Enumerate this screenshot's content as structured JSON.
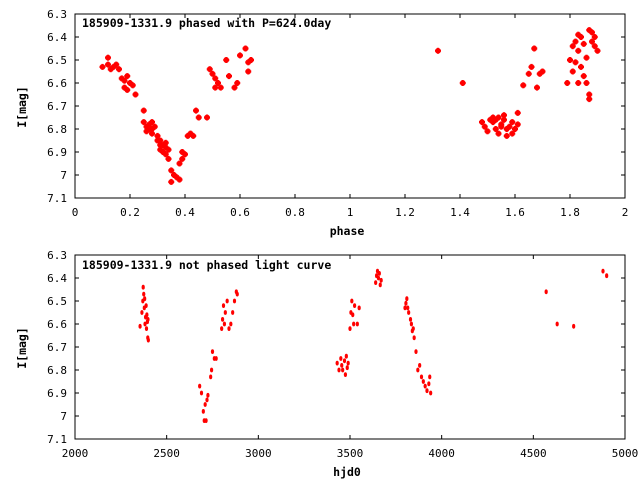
{
  "chart_data": [
    {
      "type": "scatter",
      "title": "185909-1331.9 phased with P=624.0day",
      "xlabel": "phase",
      "ylabel": "I[mag]",
      "xlim": [
        0,
        2
      ],
      "ylim": [
        6.3,
        7.1
      ],
      "y_inverted": true,
      "xticks": [
        "0",
        "0.2",
        "0.4",
        "0.6",
        "0.8",
        "1",
        "1.2",
        "1.4",
        "1.6",
        "1.8",
        "2"
      ],
      "yticks": [
        "6.3",
        "6.4",
        "6.5",
        "6.6",
        "6.7",
        "6.8",
        "6.9",
        "7",
        "7.1"
      ],
      "marker_color": "#ff0000",
      "points": [
        [
          0.1,
          6.53
        ],
        [
          0.12,
          6.52
        ],
        [
          0.12,
          6.49
        ],
        [
          0.13,
          6.54
        ],
        [
          0.14,
          6.53
        ],
        [
          0.15,
          6.52
        ],
        [
          0.16,
          6.54
        ],
        [
          0.17,
          6.58
        ],
        [
          0.18,
          6.59
        ],
        [
          0.18,
          6.62
        ],
        [
          0.19,
          6.57
        ],
        [
          0.19,
          6.63
        ],
        [
          0.2,
          6.6
        ],
        [
          0.21,
          6.61
        ],
        [
          0.22,
          6.65
        ],
        [
          0.25,
          6.72
        ],
        [
          0.25,
          6.77
        ],
        [
          0.26,
          6.79
        ],
        [
          0.26,
          6.81
        ],
        [
          0.27,
          6.78
        ],
        [
          0.27,
          6.8
        ],
        [
          0.28,
          6.77
        ],
        [
          0.28,
          6.82
        ],
        [
          0.28,
          6.8
        ],
        [
          0.29,
          6.79
        ],
        [
          0.3,
          6.83
        ],
        [
          0.3,
          6.85
        ],
        [
          0.31,
          6.87
        ],
        [
          0.31,
          6.89
        ],
        [
          0.31,
          6.85
        ],
        [
          0.32,
          6.87
        ],
        [
          0.32,
          6.9
        ],
        [
          0.33,
          6.86
        ],
        [
          0.33,
          6.91
        ],
        [
          0.33,
          6.88
        ],
        [
          0.34,
          6.89
        ],
        [
          0.34,
          6.93
        ],
        [
          0.35,
          6.98
        ],
        [
          0.35,
          7.03
        ],
        [
          0.36,
          7.0
        ],
        [
          0.37,
          7.01
        ],
        [
          0.38,
          7.02
        ],
        [
          0.38,
          6.95
        ],
        [
          0.39,
          6.93
        ],
        [
          0.39,
          6.9
        ],
        [
          0.4,
          6.91
        ],
        [
          0.41,
          6.83
        ],
        [
          0.42,
          6.82
        ],
        [
          0.43,
          6.83
        ],
        [
          0.44,
          6.72
        ],
        [
          0.45,
          6.75
        ],
        [
          0.48,
          6.75
        ],
        [
          0.49,
          6.54
        ],
        [
          0.5,
          6.56
        ],
        [
          0.51,
          6.58
        ],
        [
          0.51,
          6.62
        ],
        [
          0.52,
          6.6
        ],
        [
          0.53,
          6.62
        ],
        [
          0.55,
          6.5
        ],
        [
          0.56,
          6.57
        ],
        [
          0.58,
          6.62
        ],
        [
          0.59,
          6.6
        ],
        [
          0.6,
          6.48
        ],
        [
          0.62,
          6.45
        ],
        [
          0.63,
          6.51
        ],
        [
          0.63,
          6.55
        ],
        [
          0.64,
          6.5
        ],
        [
          1.32,
          6.46
        ],
        [
          1.41,
          6.6
        ],
        [
          1.48,
          6.77
        ],
        [
          1.49,
          6.79
        ],
        [
          1.5,
          6.81
        ],
        [
          1.51,
          6.76
        ],
        [
          1.52,
          6.75
        ],
        [
          1.52,
          6.77
        ],
        [
          1.53,
          6.76
        ],
        [
          1.53,
          6.8
        ],
        [
          1.54,
          6.75
        ],
        [
          1.54,
          6.82
        ],
        [
          1.55,
          6.78
        ],
        [
          1.55,
          6.79
        ],
        [
          1.56,
          6.74
        ],
        [
          1.56,
          6.76
        ],
        [
          1.57,
          6.8
        ],
        [
          1.57,
          6.83
        ],
        [
          1.58,
          6.79
        ],
        [
          1.59,
          6.77
        ],
        [
          1.59,
          6.82
        ],
        [
          1.6,
          6.8
        ],
        [
          1.61,
          6.73
        ],
        [
          1.61,
          6.78
        ],
        [
          1.63,
          6.61
        ],
        [
          1.65,
          6.56
        ],
        [
          1.66,
          6.53
        ],
        [
          1.67,
          6.45
        ],
        [
          1.68,
          6.62
        ],
        [
          1.69,
          6.56
        ],
        [
          1.7,
          6.55
        ],
        [
          1.79,
          6.6
        ],
        [
          1.8,
          6.5
        ],
        [
          1.81,
          6.44
        ],
        [
          1.81,
          6.55
        ],
        [
          1.82,
          6.42
        ],
        [
          1.82,
          6.51
        ],
        [
          1.83,
          6.39
        ],
        [
          1.83,
          6.46
        ],
        [
          1.83,
          6.6
        ],
        [
          1.84,
          6.4
        ],
        [
          1.84,
          6.53
        ],
        [
          1.85,
          6.43
        ],
        [
          1.85,
          6.57
        ],
        [
          1.86,
          6.49
        ],
        [
          1.86,
          6.6
        ],
        [
          1.87,
          6.37
        ],
        [
          1.87,
          6.65
        ],
        [
          1.87,
          6.67
        ],
        [
          1.88,
          6.38
        ],
        [
          1.88,
          6.42
        ],
        [
          1.89,
          6.4
        ],
        [
          1.89,
          6.44
        ],
        [
          1.9,
          6.46
        ]
      ]
    },
    {
      "type": "scatter",
      "title": "185909-1331.9 not phased light curve",
      "xlabel": "hjd0",
      "ylabel": "I[mag]",
      "xlim": [
        2000,
        5000
      ],
      "ylim": [
        6.3,
        7.1
      ],
      "y_inverted": true,
      "xticks": [
        "2000",
        "2500",
        "3000",
        "3500",
        "4000",
        "4500",
        "5000"
      ],
      "yticks": [
        "6.3",
        "6.4",
        "6.5",
        "6.6",
        "6.7",
        "6.8",
        "6.9",
        "7",
        "7.1"
      ],
      "marker_color": "#ff0000",
      "points": [
        [
          2355,
          6.61
        ],
        [
          2365,
          6.55
        ],
        [
          2370,
          6.5
        ],
        [
          2372,
          6.44
        ],
        [
          2375,
          6.47
        ],
        [
          2378,
          6.53
        ],
        [
          2380,
          6.49
        ],
        [
          2382,
          6.6
        ],
        [
          2385,
          6.57
        ],
        [
          2388,
          6.52
        ],
        [
          2390,
          6.62
        ],
        [
          2392,
          6.56
        ],
        [
          2395,
          6.59
        ],
        [
          2397,
          6.66
        ],
        [
          2400,
          6.67
        ],
        [
          2398,
          6.58
        ],
        [
          2680,
          6.87
        ],
        [
          2690,
          6.9
        ],
        [
          2700,
          6.98
        ],
        [
          2705,
          7.02
        ],
        [
          2710,
          6.95
        ],
        [
          2715,
          7.02
        ],
        [
          2720,
          6.93
        ],
        [
          2725,
          6.91
        ],
        [
          2740,
          6.83
        ],
        [
          2745,
          6.8
        ],
        [
          2750,
          6.72
        ],
        [
          2760,
          6.75
        ],
        [
          2770,
          6.75
        ],
        [
          2800,
          6.62
        ],
        [
          2805,
          6.58
        ],
        [
          2810,
          6.52
        ],
        [
          2815,
          6.6
        ],
        [
          2820,
          6.55
        ],
        [
          2830,
          6.5
        ],
        [
          2840,
          6.62
        ],
        [
          2850,
          6.6
        ],
        [
          2860,
          6.55
        ],
        [
          2870,
          6.5
        ],
        [
          2880,
          6.46
        ],
        [
          2885,
          6.47
        ],
        [
          3430,
          6.77
        ],
        [
          3440,
          6.8
        ],
        [
          3450,
          6.75
        ],
        [
          3455,
          6.78
        ],
        [
          3460,
          6.8
        ],
        [
          3470,
          6.76
        ],
        [
          3475,
          6.82
        ],
        [
          3480,
          6.74
        ],
        [
          3485,
          6.79
        ],
        [
          3490,
          6.77
        ],
        [
          3500,
          6.62
        ],
        [
          3505,
          6.55
        ],
        [
          3510,
          6.5
        ],
        [
          3515,
          6.56
        ],
        [
          3520,
          6.6
        ],
        [
          3525,
          6.52
        ],
        [
          3540,
          6.6
        ],
        [
          3550,
          6.53
        ],
        [
          3640,
          6.42
        ],
        [
          3645,
          6.39
        ],
        [
          3650,
          6.37
        ],
        [
          3655,
          6.4
        ],
        [
          3660,
          6.38
        ],
        [
          3665,
          6.43
        ],
        [
          3670,
          6.41
        ],
        [
          3800,
          6.53
        ],
        [
          3805,
          6.51
        ],
        [
          3810,
          6.49
        ],
        [
          3815,
          6.53
        ],
        [
          3820,
          6.55
        ],
        [
          3830,
          6.58
        ],
        [
          3835,
          6.6
        ],
        [
          3840,
          6.63
        ],
        [
          3845,
          6.62
        ],
        [
          3850,
          6.66
        ],
        [
          3860,
          6.72
        ],
        [
          3870,
          6.8
        ],
        [
          3880,
          6.78
        ],
        [
          3890,
          6.83
        ],
        [
          3900,
          6.85
        ],
        [
          3910,
          6.87
        ],
        [
          3920,
          6.89
        ],
        [
          3930,
          6.86
        ],
        [
          3935,
          6.83
        ],
        [
          3940,
          6.9
        ],
        [
          4570,
          6.46
        ],
        [
          4630,
          6.6
        ],
        [
          4720,
          6.61
        ],
        [
          4880,
          6.37
        ],
        [
          4900,
          6.39
        ]
      ]
    }
  ]
}
